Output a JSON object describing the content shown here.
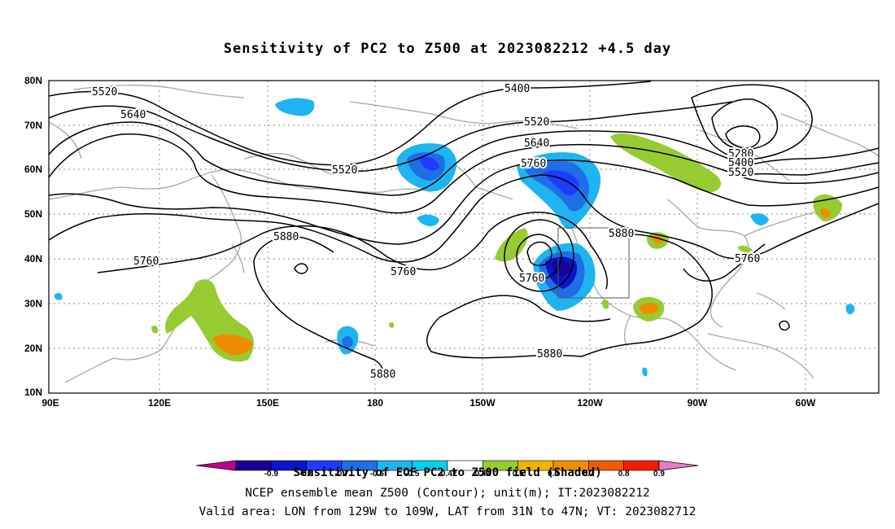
{
  "title": "Sensitivity of PC2 to Z500 at 2023082212 +4.5 day",
  "lat_labels": [
    "80N",
    "70N",
    "60N",
    "50N",
    "40N",
    "30N",
    "20N",
    "10N"
  ],
  "lon_labels": [
    "90E",
    "120E",
    "150E",
    "180",
    "150W",
    "120W",
    "90W",
    "60W"
  ],
  "contour_labels": [
    "5520",
    "5640",
    "5520",
    "5400",
    "5520",
    "5640",
    "5760",
    "5280",
    "5400",
    "5520",
    "5880",
    "5880",
    "5760",
    "5760",
    "5760",
    "5760",
    "5880",
    "5880"
  ],
  "colorbar": {
    "labels": [
      "-0.9",
      "-0.8",
      "-0.7",
      "-0.6",
      "-0.5",
      "-0.42",
      "0.42",
      "0.5",
      "0.6",
      "0.7",
      "0.8",
      "0.9"
    ],
    "colors": [
      "#c0008c",
      "#1a0096",
      "#0a14c8",
      "#1e3cff",
      "#1e6ee6",
      "#1eb4f0",
      "#00d2f0",
      "#ffffff",
      "#96cc32",
      "#f0b400",
      "#f08c00",
      "#f05a00",
      "#f01e00",
      "#e67dc8"
    ]
  },
  "caption": {
    "line1": "Sensitivity of EOF PC2 to Z500 field (Shaded)",
    "line2": "NCEP ensemble mean Z500 (Contour); unit(m); IT:2023082212",
    "line3": "Valid area: LON from 129W to 109W, LAT from 31N to 47N; VT: 2023082712"
  }
}
